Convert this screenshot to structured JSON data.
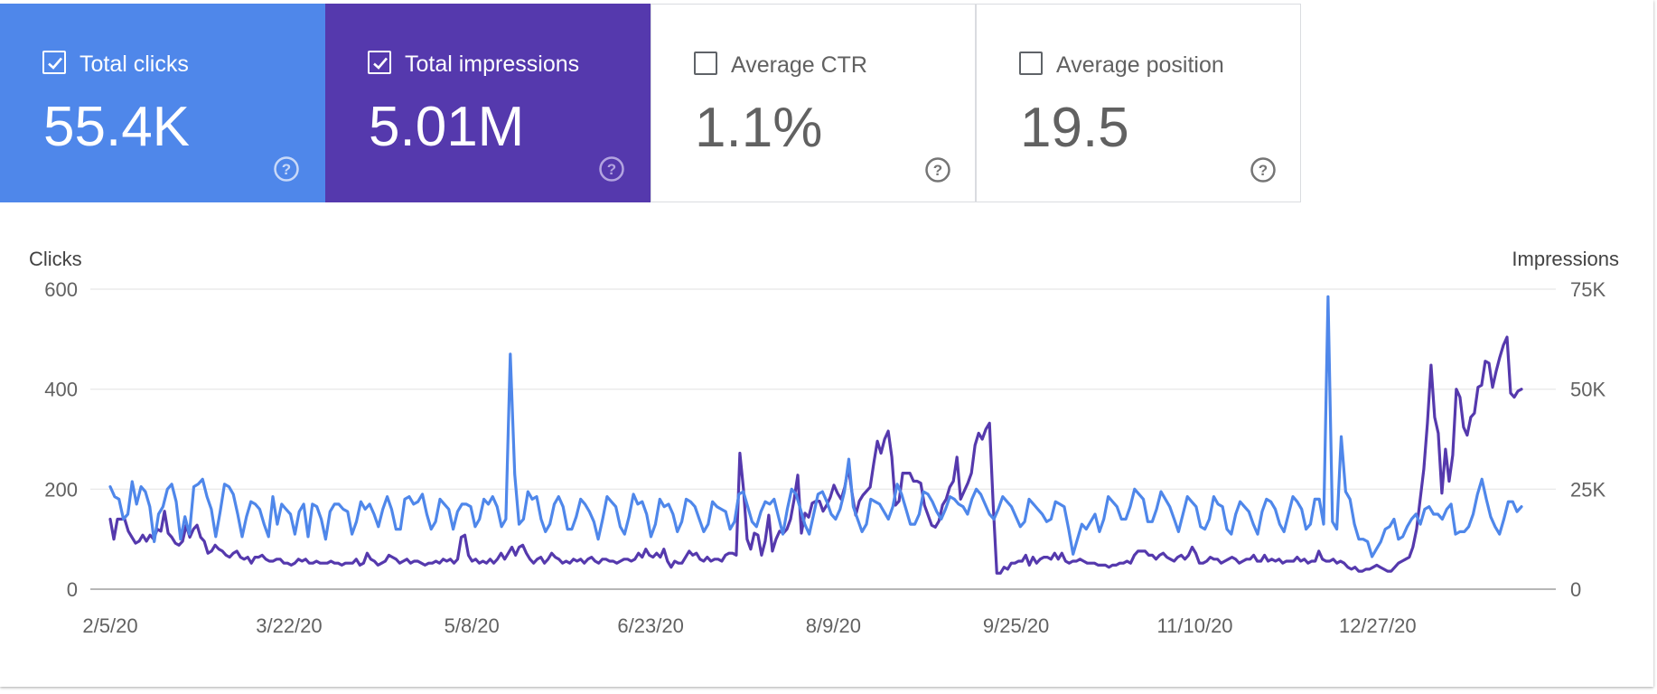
{
  "metrics": [
    {
      "label": "Total clicks",
      "value": "55.4K",
      "checked": true,
      "color": "#4f87ea",
      "help_icon": "help-circle-icon"
    },
    {
      "label": "Total impressions",
      "value": "5.01M",
      "checked": true,
      "color": "#5539ad",
      "help_icon": "help-circle-icon"
    },
    {
      "label": "Average CTR",
      "value": "1.1%",
      "checked": false,
      "help_icon": "help-circle-icon"
    },
    {
      "label": "Average position",
      "value": "19.5",
      "checked": false,
      "help_icon": "help-circle-icon"
    }
  ],
  "chart_data": {
    "type": "line",
    "ylabel_left": "Clicks",
    "ylabel_right": "Impressions",
    "y_left_ticks": [
      "0",
      "200",
      "400",
      "600"
    ],
    "y_left_range": [
      0,
      600
    ],
    "y_right_ticks": [
      "0",
      "25K",
      "50K",
      "75K"
    ],
    "y_right_range": [
      0,
      75000
    ],
    "x_tick_labels": [
      "2/5/20",
      "3/22/20",
      "5/8/20",
      "6/23/20",
      "8/9/20",
      "9/25/20",
      "11/10/20",
      "12/27/20"
    ],
    "x_start": "2/5/20",
    "x_end": "2/2/21",
    "grid": true,
    "legend": "none",
    "series": [
      {
        "name": "Total clicks",
        "axis": "left",
        "color": "#4f87ea",
        "values": [
          205,
          185,
          180,
          140,
          150,
          215,
          170,
          205,
          195,
          165,
          95,
          150,
          165,
          200,
          210,
          175,
          100,
          145,
          110,
          205,
          210,
          220,
          185,
          160,
          105,
          155,
          210,
          205,
          190,
          150,
          105,
          145,
          175,
          170,
          160,
          130,
          105,
          185,
          130,
          170,
          160,
          150,
          110,
          155,
          170,
          105,
          170,
          165,
          140,
          100,
          155,
          170,
          170,
          160,
          155,
          110,
          135,
          175,
          160,
          170,
          150,
          125,
          160,
          185,
          160,
          120,
          120,
          180,
          185,
          170,
          175,
          190,
          150,
          120,
          135,
          180,
          170,
          160,
          120,
          155,
          170,
          170,
          165,
          125,
          140,
          180,
          170,
          185,
          165,
          125,
          140,
          470,
          230,
          130,
          140,
          195,
          180,
          185,
          140,
          115,
          130,
          170,
          185,
          165,
          120,
          120,
          145,
          180,
          170,
          155,
          135,
          100,
          140,
          185,
          175,
          165,
          125,
          110,
          145,
          190,
          170,
          175,
          150,
          105,
          130,
          180,
          165,
          170,
          150,
          115,
          135,
          180,
          175,
          165,
          140,
          115,
          130,
          175,
          165,
          160,
          155,
          120,
          135,
          190,
          195,
          165,
          135,
          125,
          155,
          175,
          170,
          180,
          145,
          110,
          160,
          200,
          190,
          160,
          130,
          110,
          150,
          190,
          195,
          175,
          150,
          140,
          160,
          195,
          260,
          165,
          140,
          115,
          130,
          180,
          175,
          170,
          155,
          140,
          165,
          210,
          190,
          160,
          130,
          130,
          150,
          195,
          190,
          175,
          155,
          140,
          160,
          185,
          180,
          170,
          165,
          150,
          180,
          200,
          190,
          170,
          150,
          140,
          160,
          185,
          175,
          165,
          145,
          125,
          135,
          180,
          170,
          160,
          150,
          135,
          140,
          175,
          170,
          165,
          120,
          70,
          100,
          130,
          120,
          135,
          150,
          115,
          140,
          185,
          175,
          165,
          140,
          140,
          165,
          200,
          190,
          180,
          135,
          135,
          160,
          195,
          180,
          165,
          140,
          115,
          150,
          185,
          175,
          165,
          125,
          120,
          140,
          185,
          170,
          165,
          120,
          110,
          150,
          175,
          165,
          155,
          130,
          110,
          155,
          180,
          175,
          160,
          130,
          115,
          150,
          185,
          175,
          160,
          120,
          130,
          180,
          180,
          130,
          585,
          135,
          120,
          305,
          195,
          180,
          130,
          100,
          100,
          95,
          65,
          80,
          95,
          120,
          125,
          140,
          100,
          105,
          125,
          140,
          150,
          130,
          160,
          165,
          150,
          150,
          140,
          160,
          170,
          110,
          115,
          115,
          125,
          150,
          190,
          220,
          180,
          145,
          125,
          110,
          140,
          175,
          175,
          155,
          165
        ]
      },
      {
        "name": "Total impressions",
        "axis": "right",
        "color": "#5539ad",
        "values": [
          17500,
          12500,
          17500,
          17500,
          17500,
          14500,
          13000,
          11500,
          12000,
          13500,
          12000,
          13500,
          12500,
          15000,
          14500,
          19500,
          14000,
          13000,
          11500,
          11000,
          12000,
          16000,
          13000,
          15000,
          16000,
          13000,
          12000,
          9000,
          9500,
          11000,
          10000,
          9500,
          8500,
          8000,
          9000,
          9500,
          8000,
          7500,
          8000,
          6500,
          8000,
          8000,
          8500,
          7500,
          7000,
          7000,
          7500,
          7500,
          6500,
          6500,
          6000,
          6500,
          7500,
          7000,
          7500,
          6500,
          6500,
          7000,
          6500,
          6500,
          6500,
          7000,
          6500,
          6500,
          6000,
          6500,
          6500,
          6500,
          7500,
          6000,
          6500,
          9000,
          7500,
          7000,
          6000,
          6500,
          7000,
          8500,
          8000,
          7500,
          6500,
          7000,
          7500,
          6500,
          7000,
          7000,
          6500,
          6000,
          6500,
          6500,
          7000,
          6500,
          7500,
          7000,
          7500,
          6500,
          7500,
          13000,
          13500,
          8500,
          7000,
          7500,
          6500,
          7000,
          6500,
          7500,
          6500,
          7500,
          9000,
          7500,
          9000,
          10500,
          8500,
          10500,
          11000,
          9000,
          7500,
          6500,
          7500,
          8000,
          6500,
          7500,
          9000,
          8000,
          7500,
          6500,
          7000,
          6500,
          7500,
          7000,
          7500,
          6500,
          7500,
          8000,
          7000,
          6500,
          7500,
          7500,
          7000,
          7000,
          6500,
          7000,
          7500,
          7500,
          7000,
          7500,
          9000,
          8000,
          10000,
          8500,
          8000,
          9000,
          8000,
          10000,
          7000,
          5500,
          7000,
          6500,
          6500,
          8000,
          9500,
          8500,
          9000,
          7500,
          7000,
          8000,
          7000,
          7500,
          7500,
          7000,
          8500,
          9000,
          9000,
          8500,
          34000,
          25000,
          12500,
          10000,
          14000,
          13500,
          8500,
          12000,
          18500,
          9500,
          12500,
          14500,
          14000,
          15000,
          17500,
          22500,
          28500,
          14000,
          19000,
          18000,
          21500,
          22000,
          22000,
          19500,
          21000,
          23000,
          26000,
          24000,
          22500,
          25500,
          30500,
          24000,
          18500,
          22000,
          23500,
          24500,
          25500,
          31500,
          37000,
          34000,
          37500,
          39500,
          33000,
          21000,
          22000,
          29000,
          29000,
          29000,
          27000,
          27000,
          26500,
          21000,
          18500,
          16000,
          15500,
          17000,
          21000,
          22500,
          25500,
          27000,
          33000,
          22500,
          24500,
          26500,
          29000,
          36000,
          39000,
          37500,
          40000,
          41500,
          21000,
          4000,
          4000,
          5500,
          5000,
          6500,
          6500,
          7000,
          7000,
          8500,
          6000,
          8000,
          6500,
          7500,
          8000,
          8000,
          7500,
          9000,
          7500,
          9000,
          7000,
          6500,
          7000,
          7000,
          7500,
          7000,
          6500,
          6500,
          6500,
          6000,
          6000,
          6000,
          5500,
          6000,
          6000,
          6500,
          6500,
          7000,
          6500,
          8500,
          9500,
          9500,
          9500,
          8500,
          8500,
          7500,
          8500,
          9000,
          8000,
          7500,
          7000,
          8000,
          8500,
          7500,
          8500,
          10500,
          9000,
          6500,
          6500,
          7000,
          8000,
          7500,
          7500,
          6500,
          7000,
          7500,
          8000,
          7500,
          6500,
          7000,
          7500,
          7500,
          8500,
          7000,
          7000,
          8500,
          7000,
          7500,
          7000,
          7500,
          6500,
          7000,
          7000,
          7000,
          8000,
          7000,
          7500,
          6500,
          7000,
          7000,
          9500,
          7500,
          7000,
          7000,
          7500,
          6500,
          7000,
          6500,
          5500,
          5000,
          5500,
          4500,
          4500,
          5000,
          5000,
          5500,
          6000,
          5500,
          5000,
          4500,
          4500,
          5500,
          6500,
          7000,
          7500,
          8000,
          10500,
          15000,
          22500,
          30000,
          41500,
          56000,
          43000,
          39000,
          24000,
          35000,
          27000,
          33500,
          50000,
          48000,
          40500,
          38500,
          43000,
          44000,
          50500,
          51000,
          57000,
          56500,
          50500,
          54500,
          58000,
          61000,
          63000,
          49000,
          48000,
          49500,
          50000
        ]
      }
    ]
  }
}
